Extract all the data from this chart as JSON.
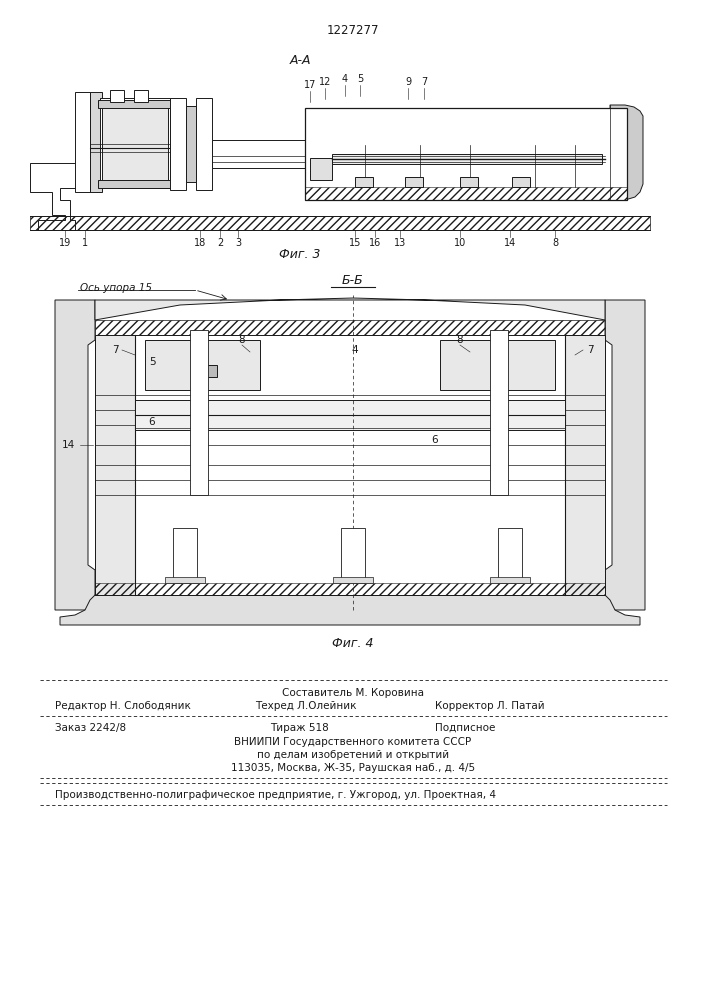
{
  "patent_number": "1227277",
  "fig3_label": "А-А",
  "fig3_caption": "Фиг. 3",
  "fig4_label": "Б-Б",
  "fig4_caption": "Фиг. 4",
  "fig4_axis_label": "Ось упора 15",
  "bg_color": "#ffffff",
  "line_color": "#1a1a1a",
  "footer_sestavitel": "Составитель М. Коровина",
  "footer_redaktor": "Редактор Н. Слободяник",
  "footer_tekhred": "Техред Л.Олейник",
  "footer_korrektor": "Корректор Л. Патай",
  "footer_zakaz": "Заказ 2242/8",
  "footer_tirazh": "Тираж 518",
  "footer_podpisnoe": "Подписное",
  "footer_vniipи": "ВНИИПИ Государственного комитета СССР",
  "footer_po_delam": "по делам изобретений и открытий",
  "footer_address": "113035, Москва, Ж-35, Раушская наб., д. 4/5",
  "footer_production": "Производственно-полиграфическое предприятие, г. Ужгород, ул. Проектная, 4"
}
